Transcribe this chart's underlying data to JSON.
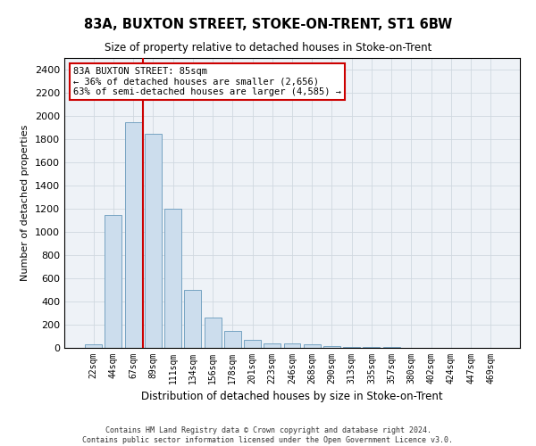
{
  "title": "83A, BUXTON STREET, STOKE-ON-TRENT, ST1 6BW",
  "subtitle": "Size of property relative to detached houses in Stoke-on-Trent",
  "xlabel": "Distribution of detached houses by size in Stoke-on-Trent",
  "ylabel": "Number of detached properties",
  "footer_line1": "Contains HM Land Registry data © Crown copyright and database right 2024.",
  "footer_line2": "Contains public sector information licensed under the Open Government Licence v3.0.",
  "categories": [
    "22sqm",
    "44sqm",
    "67sqm",
    "89sqm",
    "111sqm",
    "134sqm",
    "156sqm",
    "178sqm",
    "201sqm",
    "223sqm",
    "246sqm",
    "268sqm",
    "290sqm",
    "313sqm",
    "335sqm",
    "357sqm",
    "380sqm",
    "402sqm",
    "424sqm",
    "447sqm",
    "469sqm"
  ],
  "values": [
    30,
    1150,
    1950,
    1850,
    1200,
    500,
    260,
    150,
    70,
    40,
    35,
    30,
    15,
    10,
    10,
    5,
    3,
    2,
    1,
    1,
    1
  ],
  "bar_color": "#ccdded",
  "bar_edge_color": "#6699bb",
  "grid_color": "#d0d8e0",
  "bg_color": "#eef2f7",
  "vline_index": 2.5,
  "annotation_text": "83A BUXTON STREET: 85sqm\n← 36% of detached houses are smaller (2,656)\n63% of semi-detached houses are larger (4,585) →",
  "annotation_box_color": "#ffffff",
  "annotation_border_color": "#cc0000",
  "vline_color": "#cc0000",
  "ylim": [
    0,
    2500
  ],
  "yticks": [
    0,
    200,
    400,
    600,
    800,
    1000,
    1200,
    1400,
    1600,
    1800,
    2000,
    2200,
    2400
  ]
}
